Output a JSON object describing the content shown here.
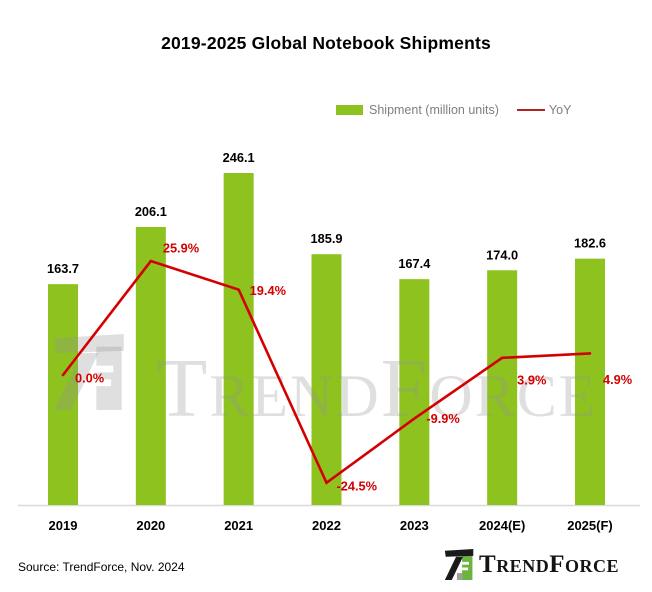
{
  "title": "2019-2025 Global Notebook Shipments",
  "legend": {
    "shipment_label": "Shipment (million units)",
    "yoy_label": "YoY"
  },
  "source": "Source: TrendForce, Nov. 2024",
  "watermark": {
    "t1": "T",
    "t2": "REND",
    "t3": "F",
    "t4": "ORCE"
  },
  "logo": {
    "t1": "T",
    "t2": "REND",
    "t3": "F",
    "t4": "ORCE"
  },
  "colors": {
    "bar": "#8DC21F",
    "line": "#D40000",
    "yoy_label": "#D40000",
    "value_label": "#000000",
    "axis_label": "#000000",
    "legend_text": "#7F7F7F",
    "legend_line": "#B22222",
    "baseline": "#D9D9D9",
    "logo_green": "#6DB33F",
    "logo_black": "#1A1A1A",
    "logo_gray": "#9E9E9E"
  },
  "chart_data": {
    "type": "bar",
    "categories": [
      "2019",
      "2020",
      "2021",
      "2022",
      "2023",
      "2024(E)",
      "2025(F)"
    ],
    "series": [
      {
        "name": "Shipment (million units)",
        "type": "bar",
        "values": [
          163.7,
          206.1,
          246.1,
          185.9,
          167.4,
          174.0,
          182.6
        ],
        "labels": [
          "163.7",
          "206.1",
          "246.1",
          "185.9",
          "167.4",
          "174.0",
          "182.6"
        ]
      },
      {
        "name": "YoY",
        "type": "line",
        "values": [
          0.0,
          25.9,
          19.4,
          -24.5,
          -9.9,
          3.9,
          4.9
        ],
        "labels": [
          "0.0%",
          "25.9%",
          "19.4%",
          "-24.5%",
          "-9.9%",
          "3.9%",
          "4.9%"
        ]
      }
    ],
    "title": "2019-2025 Global Notebook Shipments",
    "xlabel": "",
    "ylabel": "",
    "grid": false,
    "legend_position": "top"
  }
}
